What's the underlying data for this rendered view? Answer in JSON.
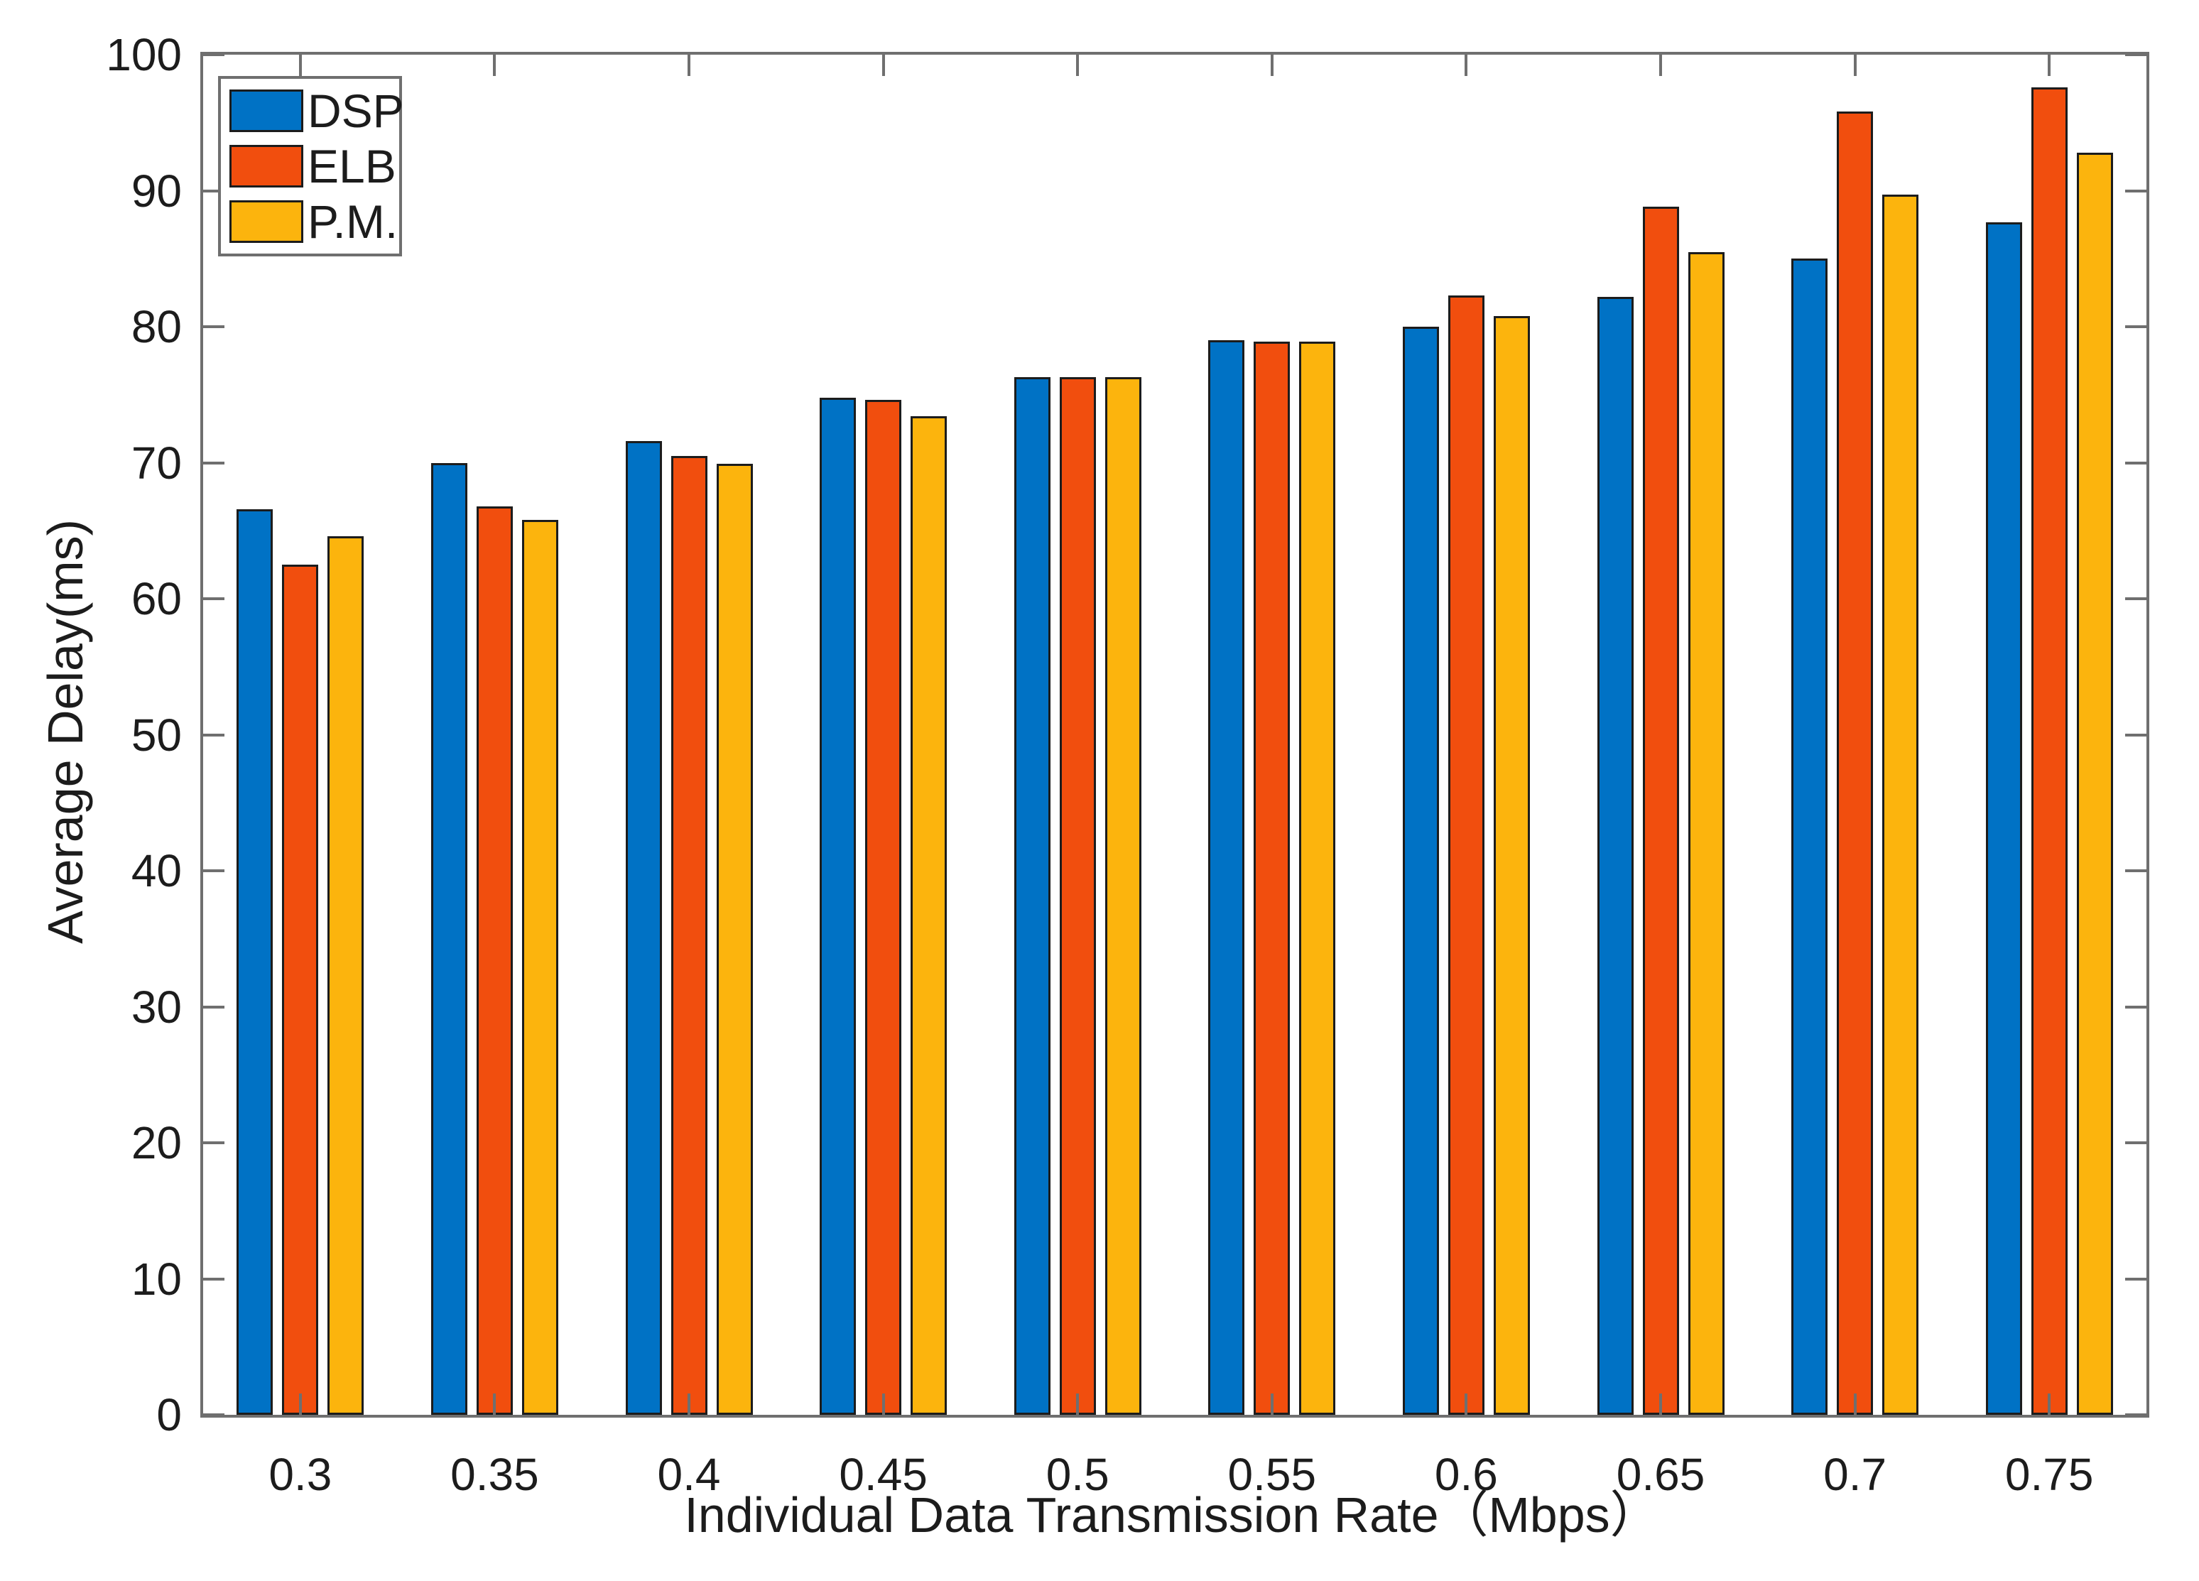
{
  "chart_data": {
    "type": "bar",
    "title": "",
    "xlabel": "Individual Data Transmission Rate（Mbps）",
    "ylabel": "Average Delay(ms)",
    "categories": [
      "0.3",
      "0.35",
      "0.4",
      "0.45",
      "0.5",
      "0.55",
      "0.6",
      "0.65",
      "0.7",
      "0.75"
    ],
    "series": [
      {
        "name": "DSP",
        "color": "#0072C5",
        "values": [
          66.6,
          70.0,
          71.6,
          74.8,
          76.3,
          79.0,
          80.0,
          82.2,
          85.0,
          87.7
        ]
      },
      {
        "name": "ELB",
        "color": "#F14E0E",
        "values": [
          62.5,
          66.8,
          70.5,
          74.6,
          76.3,
          78.9,
          82.3,
          88.8,
          95.8,
          97.6
        ]
      },
      {
        "name": "P.M.",
        "color": "#FCB40D",
        "values": [
          64.6,
          65.8,
          69.9,
          73.4,
          76.3,
          78.9,
          80.8,
          85.5,
          89.7,
          92.8
        ]
      }
    ],
    "ylim": [
      0,
      100
    ],
    "yticks": [
      0,
      10,
      20,
      30,
      40,
      50,
      60,
      70,
      80,
      90,
      100
    ],
    "legend_position": "top-left",
    "grid": false,
    "bar_edge_color": "#1c1c1c",
    "axis_color": "#6f6f6f",
    "text_color": "#1c1c1c"
  }
}
